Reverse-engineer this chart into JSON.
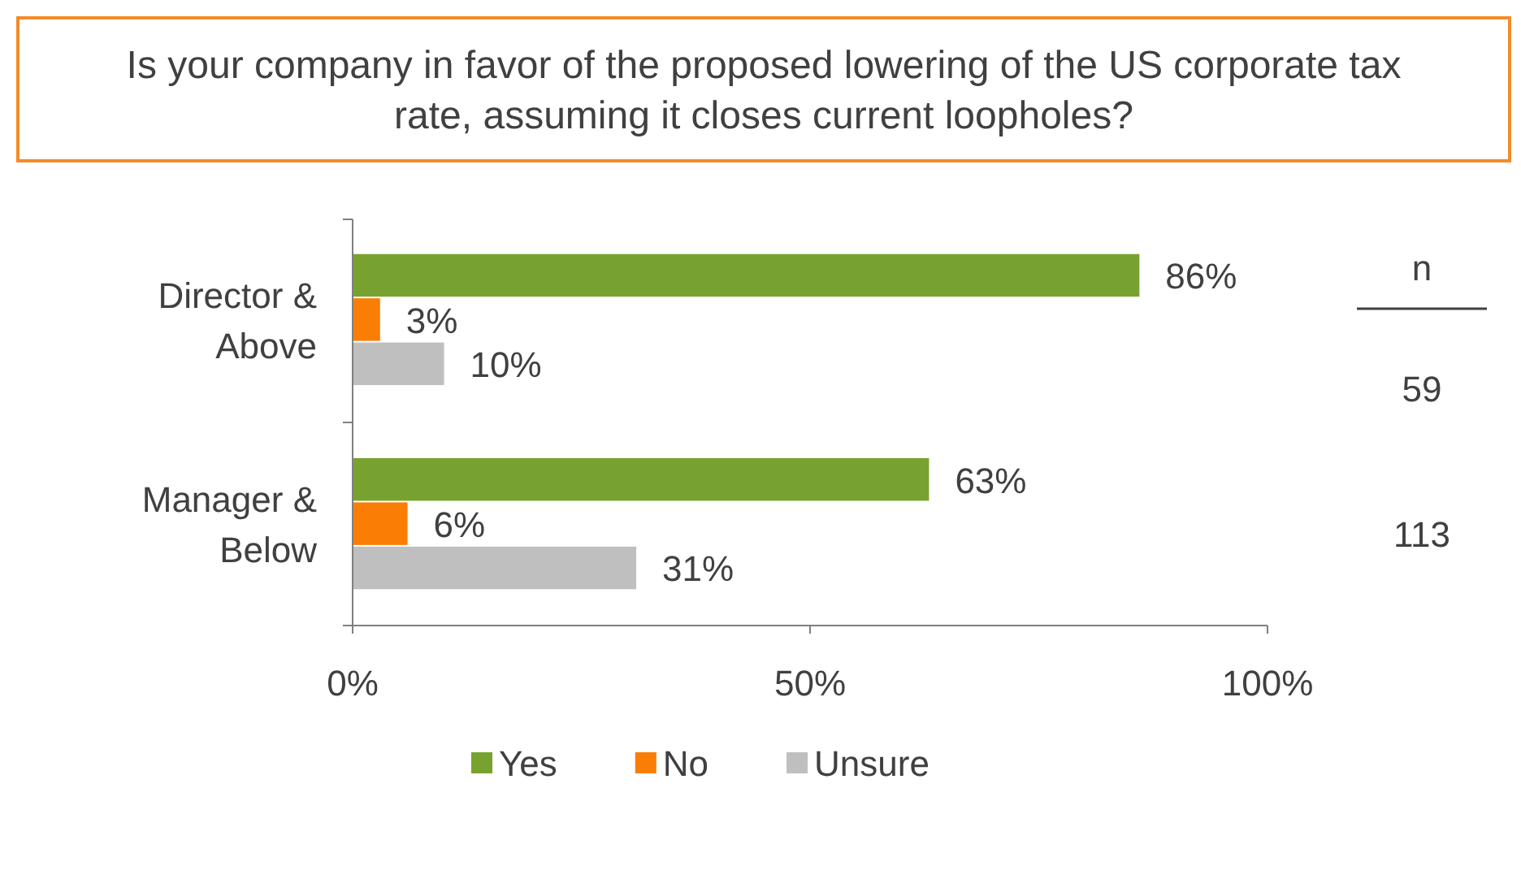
{
  "chart_data": {
    "type": "bar",
    "orientation": "horizontal",
    "title": "Is your company in favor of the proposed lowering of the US corporate tax rate, assuming it closes current loopholes?",
    "categories": [
      "Director & Above",
      "Manager & Below"
    ],
    "series": [
      {
        "name": "Yes",
        "color": "#77a22f",
        "values": [
          86,
          63
        ],
        "value_labels": [
          "86%",
          "63%"
        ]
      },
      {
        "name": "No",
        "color": "#fa7d05",
        "values": [
          3,
          6
        ],
        "value_labels": [
          "3%",
          "6%"
        ]
      },
      {
        "name": "Unsure",
        "color": "#bfbfbf",
        "values": [
          10,
          31
        ],
        "value_labels": [
          "10%",
          "31%"
        ]
      }
    ],
    "xlim": [
      0,
      100
    ],
    "xticks": [
      {
        "value": 0,
        "label": "0%"
      },
      {
        "value": 50,
        "label": "50%"
      },
      {
        "value": 100,
        "label": "100%"
      }
    ],
    "grid": false,
    "legend": "bottom",
    "annotations": [
      "n",
      "59",
      "113"
    ]
  }
}
